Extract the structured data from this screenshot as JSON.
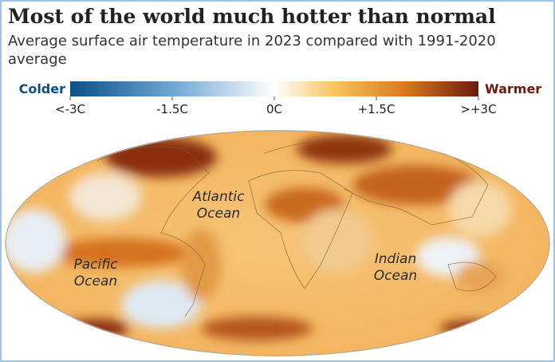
{
  "header": {
    "title": "Most of the world much hotter than normal",
    "subtitle": "Average surface air temperature in 2023 compared with 1991-2020 average"
  },
  "legend": {
    "low_label": "Colder",
    "high_label": "Warmer",
    "ticks": [
      "<-3C",
      "-1.5C",
      "0C",
      "+1.5C",
      ">+3C"
    ]
  },
  "map": {
    "labels": [
      {
        "lines": [
          "Atlantic",
          "Ocean"
        ]
      },
      {
        "lines": [
          "Pacific",
          "Ocean"
        ]
      },
      {
        "lines": [
          "Indian",
          "Ocean"
        ]
      }
    ]
  }
}
